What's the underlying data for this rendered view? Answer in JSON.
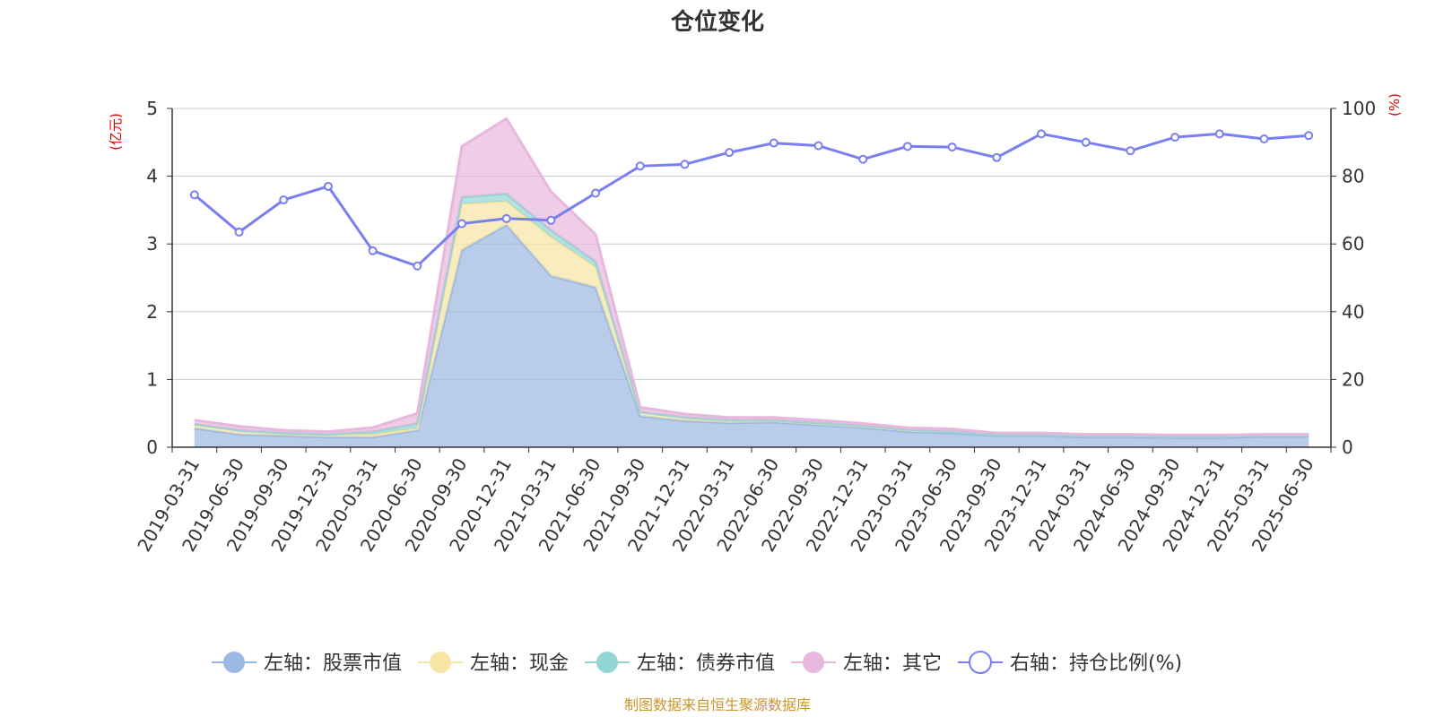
{
  "chart_data": {
    "type": "area",
    "title": "仓位变化",
    "source": "制图数据来自恒生聚源数据库",
    "left_axis": {
      "unit": "(亿元)",
      "ylim": [
        0,
        5
      ],
      "ticks": [
        "0",
        "1",
        "2",
        "3",
        "4",
        "5"
      ]
    },
    "right_axis": {
      "unit": "(%)",
      "ylim": [
        0,
        100
      ],
      "ticks": [
        "0",
        "20",
        "40",
        "60",
        "80",
        "100"
      ]
    },
    "categories": [
      "2019-03-31",
      "2019-06-30",
      "2019-09-30",
      "2019-12-31",
      "2020-03-31",
      "2020-06-30",
      "2020-09-30",
      "2020-12-31",
      "2021-03-31",
      "2021-06-30",
      "2021-09-30",
      "2021-12-31",
      "2022-03-31",
      "2022-06-30",
      "2022-09-30",
      "2022-12-31",
      "2023-03-31",
      "2023-06-30",
      "2023-09-30",
      "2023-12-31",
      "2024-03-31",
      "2024-06-30",
      "2024-09-30",
      "2024-12-31",
      "2025-03-31",
      "2025-06-30"
    ],
    "stacked_series": [
      {
        "name": "左轴：股票市值",
        "color": "#9bb8e3",
        "values": [
          0.28,
          0.19,
          0.17,
          0.15,
          0.15,
          0.25,
          2.91,
          3.28,
          2.53,
          2.36,
          0.46,
          0.39,
          0.36,
          0.37,
          0.33,
          0.29,
          0.23,
          0.21,
          0.17,
          0.17,
          0.15,
          0.15,
          0.14,
          0.14,
          0.16,
          0.16
        ]
      },
      {
        "name": "左轴：现金",
        "color": "#f7e5a4",
        "values": [
          0.06,
          0.06,
          0.04,
          0.04,
          0.04,
          0.03,
          0.68,
          0.35,
          0.57,
          0.3,
          0.06,
          0.05,
          0.04,
          0.03,
          0.03,
          0.03,
          0.03,
          0.02,
          0.02,
          0.02,
          0.02,
          0.02,
          0.02,
          0.02,
          0.02,
          0.02
        ]
      },
      {
        "name": "左轴：债券市值",
        "color": "#93d5d4",
        "values": [
          0.0,
          0.0,
          0.0,
          0.0,
          0.04,
          0.07,
          0.1,
          0.11,
          0.1,
          0.08,
          0.0,
          0.0,
          0.0,
          0.0,
          0.0,
          0.0,
          0.0,
          0.0,
          0.0,
          0.0,
          0.0,
          0.0,
          0.0,
          0.0,
          0.0,
          0.0
        ]
      },
      {
        "name": "左轴：其它",
        "color": "#e8b7dd",
        "values": [
          0.06,
          0.06,
          0.04,
          0.04,
          0.06,
          0.15,
          0.75,
          1.11,
          0.57,
          0.4,
          0.07,
          0.05,
          0.04,
          0.04,
          0.04,
          0.03,
          0.03,
          0.04,
          0.02,
          0.02,
          0.02,
          0.02,
          0.02,
          0.02,
          0.01,
          0.01
        ]
      }
    ],
    "line_series": {
      "name": "右轴：持仓比例(%)",
      "color": "#7b7ef0",
      "values": [
        74.5,
        63.5,
        73.0,
        77.0,
        58.0,
        53.5,
        66.0,
        67.5,
        67.0,
        75.0,
        83.0,
        83.5,
        87.0,
        89.8,
        89.0,
        85.0,
        88.8,
        88.6,
        85.5,
        92.5,
        90.0,
        87.5,
        91.5,
        92.5,
        91.0,
        92.0
      ]
    },
    "legend": {
      "position": "bottom"
    },
    "grid": true
  }
}
